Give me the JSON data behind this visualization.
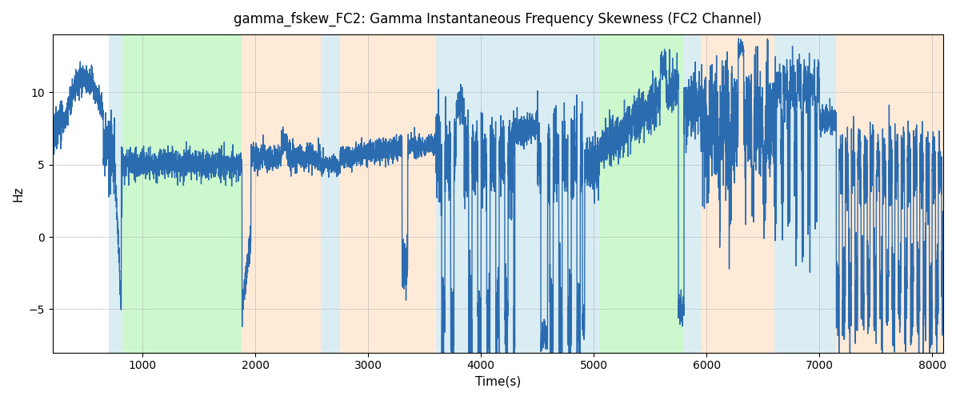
{
  "title": "gamma_fskew_FC2: Gamma Instantaneous Frequency Skewness (FC2 Channel)",
  "xlabel": "Time(s)",
  "ylabel": "Hz",
  "xlim": [
    200,
    8100
  ],
  "ylim": [
    -8,
    14
  ],
  "line_color": "#2b6cb0",
  "line_width": 1.0,
  "background_color": "#ffffff",
  "grid_color": "#b0b0b0",
  "bands": [
    {
      "xmin": 700,
      "xmax": 820,
      "color": "#add8e6",
      "alpha": 0.45
    },
    {
      "xmin": 820,
      "xmax": 1880,
      "color": "#90ee90",
      "alpha": 0.45
    },
    {
      "xmin": 1880,
      "xmax": 2580,
      "color": "#ffdab9",
      "alpha": 0.55
    },
    {
      "xmin": 2580,
      "xmax": 2750,
      "color": "#add8e6",
      "alpha": 0.45
    },
    {
      "xmin": 2750,
      "xmax": 3600,
      "color": "#ffdab9",
      "alpha": 0.55
    },
    {
      "xmin": 3600,
      "xmax": 4900,
      "color": "#add8e6",
      "alpha": 0.45
    },
    {
      "xmin": 4900,
      "xmax": 5050,
      "color": "#add8e6",
      "alpha": 0.45
    },
    {
      "xmin": 5050,
      "xmax": 5800,
      "color": "#90ee90",
      "alpha": 0.45
    },
    {
      "xmin": 5800,
      "xmax": 5950,
      "color": "#add8e6",
      "alpha": 0.45
    },
    {
      "xmin": 5950,
      "xmax": 6600,
      "color": "#ffdab9",
      "alpha": 0.55
    },
    {
      "xmin": 6600,
      "xmax": 7000,
      "color": "#add8e6",
      "alpha": 0.45
    },
    {
      "xmin": 7000,
      "xmax": 7150,
      "color": "#add8e6",
      "alpha": 0.45
    },
    {
      "xmin": 7150,
      "xmax": 8100,
      "color": "#ffdab9",
      "alpha": 0.55
    }
  ],
  "seed": 42,
  "n_points": 8000
}
